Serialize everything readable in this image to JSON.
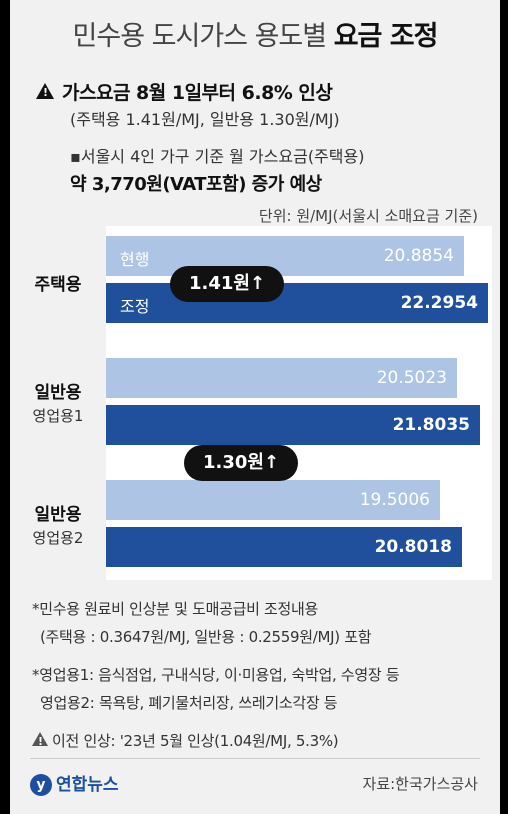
{
  "title": {
    "light": "민수용 도시가스 용도별",
    "bold": "요금 조정"
  },
  "headline": "가스요금 8월 1일부터 6.8% 인상",
  "headline_sub": "(주택용 1.41원/MJ, 일반용 1.30원/MJ)",
  "bullet_line1": "▪서울시 4인 가구 기준 월 가스요금(주택용)",
  "bullet_line2": "약 3,770원(VAT포함) 증가 예상",
  "unit": "단위: 원/MJ(서울시 소매요금 기준)",
  "callouts": [
    "1.41원↑",
    "1.30원↑"
  ],
  "chart_data": {
    "type": "bar",
    "orientation": "horizontal",
    "categories": [
      {
        "name": "주택용",
        "sub": ""
      },
      {
        "name": "일반용",
        "sub": "영업용1"
      },
      {
        "name": "일반용",
        "sub": "영업용2"
      }
    ],
    "series": [
      {
        "name": "현행",
        "values": [
          20.8854,
          20.5023,
          19.5006
        ],
        "color": "#adc4e4"
      },
      {
        "name": "조정",
        "values": [
          22.2954,
          21.8035,
          20.8018
        ],
        "color": "#20509b"
      }
    ],
    "value_labels": [
      [
        "20.8854",
        "22.2954"
      ],
      [
        "20.5023",
        "21.8035"
      ],
      [
        "19.5006",
        "20.8018"
      ]
    ],
    "xlim": [
      0,
      22.2954
    ],
    "legend": "inline-first-group"
  },
  "notes": [
    "*민수용 원료비 인상분 및 도매공급비 조정내용",
    "(주택용 : 0.3647원/MJ, 일반용 : 0.2559원/MJ) 포함",
    "*영업용1: 음식점업, 구내식당, 이·미용업, 숙박업, 수영장 등",
    "영업용2: 목욕탕, 폐기물처리장, 쓰레기소각장 등",
    "이전 인상: '23년 5월 인상(1.04원/MJ, 5.3%)"
  ],
  "logo": "연합뉴스",
  "source": "자료:한국가스공사"
}
